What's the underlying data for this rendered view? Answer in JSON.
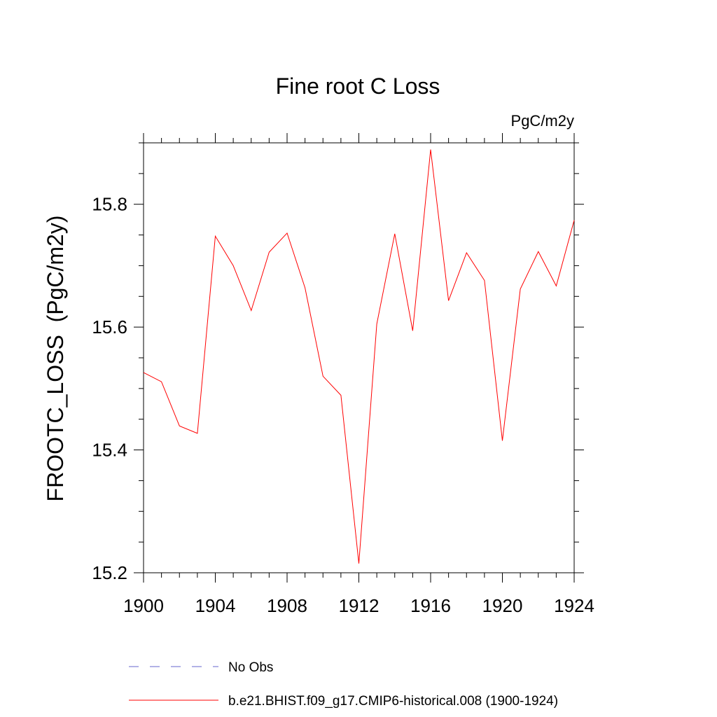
{
  "chart_data": {
    "type": "line",
    "title": "Fine root C Loss",
    "units_label": "PgC/m2y",
    "ylabel": "FROOTC_LOSS  (PgC/m2y)",
    "xlabel": "",
    "xlim": [
      1900,
      1924
    ],
    "ylim": [
      15.2,
      15.9
    ],
    "x_ticks": [
      1900,
      1904,
      1908,
      1912,
      1916,
      1920,
      1924
    ],
    "x_tick_labels": [
      "1900",
      "1904",
      "1908",
      "1912",
      "1916",
      "1920",
      "1924"
    ],
    "y_ticks": [
      15.2,
      15.4,
      15.6,
      15.8
    ],
    "y_tick_labels": [
      "15.2",
      "15.4",
      "15.6",
      "15.8"
    ],
    "grid": false,
    "legend_position": "bottom",
    "series": [
      {
        "name": "b.e21.BHIST.f09_g17.CMIP6-historical.008 (1900-1924)",
        "color": "#ff0000",
        "dash": "solid",
        "x": [
          1900,
          1901,
          1902,
          1903,
          1904,
          1905,
          1906,
          1907,
          1908,
          1909,
          1910,
          1911,
          1912,
          1913,
          1914,
          1915,
          1916,
          1917,
          1918,
          1919,
          1920,
          1921,
          1922,
          1923,
          1924
        ],
        "values": [
          15.526,
          15.511,
          15.439,
          15.427,
          15.748,
          15.7,
          15.627,
          15.722,
          15.753,
          15.664,
          15.52,
          15.489,
          15.215,
          15.605,
          15.752,
          15.594,
          15.889,
          15.643,
          15.721,
          15.676,
          15.415,
          15.662,
          15.723,
          15.667,
          15.774
        ]
      }
    ],
    "legend": [
      {
        "name": "No Obs",
        "color": "#6666cc",
        "dash": "dashed"
      },
      {
        "name": "b.e21.BHIST.f09_g17.CMIP6-historical.008 (1900-1924)",
        "color": "#ff0000",
        "dash": "solid"
      }
    ]
  }
}
